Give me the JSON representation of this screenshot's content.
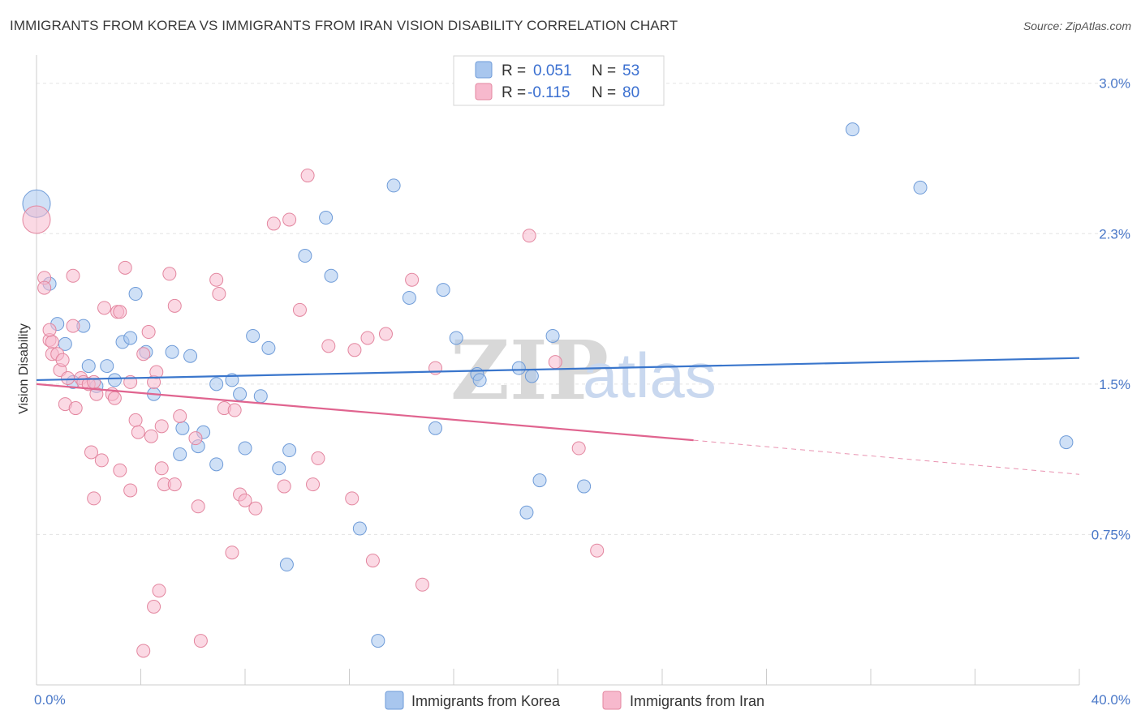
{
  "chart_data": {
    "type": "scatter",
    "title": "IMMIGRANTS FROM KOREA VS IMMIGRANTS FROM IRAN VISION DISABILITY CORRELATION CHART",
    "source": "Source: ZipAtlas.com",
    "ylabel": "Vision Disability",
    "xlabel": "",
    "xlim": [
      0,
      40
    ],
    "ylim": [
      0,
      3.1
    ],
    "x_tick_labels": [
      {
        "value": 0,
        "label": "0.0%"
      },
      {
        "value": 40,
        "label": "40.0%"
      }
    ],
    "y_tick_labels": [
      {
        "value": 0.75,
        "label": "0.75%"
      },
      {
        "value": 1.5,
        "label": "1.5%"
      },
      {
        "value": 2.25,
        "label": "2.3%"
      },
      {
        "value": 3.0,
        "label": "3.0%"
      }
    ],
    "legend": {
      "placement": "top-center",
      "entries": [
        {
          "r_label": "R =",
          "r_value": "0.051",
          "n_label": "N =",
          "n_value": "53"
        },
        {
          "r_label": "R =",
          "r_value": "-0.115",
          "n_label": "N =",
          "n_value": "80"
        }
      ]
    },
    "watermark": {
      "zip": "ZIP",
      "atlas": "atlas"
    },
    "series": [
      {
        "name": "Immigrants from Korea",
        "color": "#a8c6ee",
        "stroke": "#6e9bd8",
        "trend": {
          "x0": 0,
          "y0": 1.52,
          "x1": 40,
          "y1": 1.63,
          "color": "#3a76cc"
        },
        "points": [
          [
            0,
            2.4
          ],
          [
            0.5,
            2.0
          ],
          [
            0.8,
            1.8
          ],
          [
            1.8,
            1.79
          ],
          [
            1.1,
            1.7
          ],
          [
            2.0,
            1.59
          ],
          [
            2.7,
            1.59
          ],
          [
            1.4,
            1.51
          ],
          [
            2.3,
            1.49
          ],
          [
            3.0,
            1.52
          ],
          [
            3.8,
            1.95
          ],
          [
            3.3,
            1.71
          ],
          [
            3.6,
            1.73
          ],
          [
            4.2,
            1.66
          ],
          [
            5.2,
            1.66
          ],
          [
            5.9,
            1.64
          ],
          [
            4.5,
            1.45
          ],
          [
            5.6,
            1.28
          ],
          [
            6.2,
            1.19
          ],
          [
            5.5,
            1.15
          ],
          [
            6.4,
            1.26
          ],
          [
            6.9,
            1.1
          ],
          [
            6.9,
            1.5
          ],
          [
            7.5,
            1.52
          ],
          [
            7.8,
            1.45
          ],
          [
            8.0,
            1.18
          ],
          [
            8.3,
            1.74
          ],
          [
            8.6,
            1.44
          ],
          [
            8.9,
            1.68
          ],
          [
            9.3,
            1.08
          ],
          [
            9.7,
            1.17
          ],
          [
            9.6,
            0.6
          ],
          [
            10.3,
            2.14
          ],
          [
            11.1,
            2.33
          ],
          [
            11.3,
            2.04
          ],
          [
            12.4,
            0.78
          ],
          [
            13.1,
            0.22
          ],
          [
            13.7,
            2.49
          ],
          [
            14.3,
            1.93
          ],
          [
            15.6,
            1.97
          ],
          [
            15.3,
            1.28
          ],
          [
            16.1,
            1.73
          ],
          [
            16.9,
            1.55
          ],
          [
            17.0,
            1.52
          ],
          [
            18.5,
            1.58
          ],
          [
            19.0,
            1.54
          ],
          [
            18.8,
            0.86
          ],
          [
            19.3,
            1.02
          ],
          [
            19.8,
            1.74
          ],
          [
            21.0,
            0.99
          ],
          [
            31.3,
            2.77
          ],
          [
            33.9,
            2.48
          ],
          [
            39.5,
            1.21
          ]
        ]
      },
      {
        "name": "Immigrants from Iran",
        "color": "#f7b9cd",
        "stroke": "#e3869f",
        "trend": {
          "x0": 0,
          "y0": 1.5,
          "x1": 25.2,
          "y1": 1.22,
          "color": "#e0648f"
        },
        "trend_ext": {
          "x0": 25.2,
          "y0": 1.22,
          "x1": 40,
          "y1": 1.05
        },
        "points": [
          [
            0,
            2.32
          ],
          [
            0.3,
            2.03
          ],
          [
            0.3,
            1.98
          ],
          [
            0.5,
            1.72
          ],
          [
            0.6,
            1.71
          ],
          [
            0.5,
            1.77
          ],
          [
            0.6,
            1.65
          ],
          [
            0.8,
            1.65
          ],
          [
            0.9,
            1.57
          ],
          [
            1.0,
            1.62
          ],
          [
            1.2,
            1.53
          ],
          [
            1.1,
            1.4
          ],
          [
            1.4,
            1.79
          ],
          [
            1.5,
            1.38
          ],
          [
            1.4,
            2.04
          ],
          [
            1.7,
            1.53
          ],
          [
            1.8,
            1.51
          ],
          [
            2.0,
            1.5
          ],
          [
            2.2,
            1.51
          ],
          [
            2.3,
            1.45
          ],
          [
            2.1,
            1.16
          ],
          [
            2.2,
            0.93
          ],
          [
            2.5,
            1.12
          ],
          [
            2.6,
            1.88
          ],
          [
            2.9,
            1.45
          ],
          [
            3.0,
            1.43
          ],
          [
            3.1,
            1.86
          ],
          [
            3.2,
            1.86
          ],
          [
            3.2,
            1.07
          ],
          [
            3.4,
            2.08
          ],
          [
            3.6,
            0.97
          ],
          [
            3.6,
            1.51
          ],
          [
            3.8,
            1.32
          ],
          [
            3.9,
            1.26
          ],
          [
            4.1,
            1.65
          ],
          [
            4.3,
            1.76
          ],
          [
            4.4,
            1.24
          ],
          [
            4.5,
            1.51
          ],
          [
            4.6,
            1.56
          ],
          [
            4.8,
            1.29
          ],
          [
            4.8,
            1.08
          ],
          [
            4.9,
            1.0
          ],
          [
            5.3,
            1.0
          ],
          [
            5.1,
            2.05
          ],
          [
            5.3,
            1.89
          ],
          [
            5.5,
            1.34
          ],
          [
            6.1,
            1.23
          ],
          [
            6.2,
            0.89
          ],
          [
            6.9,
            2.02
          ],
          [
            7.0,
            1.95
          ],
          [
            7.2,
            1.38
          ],
          [
            7.5,
            0.66
          ],
          [
            7.6,
            1.37
          ],
          [
            7.8,
            0.95
          ],
          [
            8.0,
            0.92
          ],
          [
            8.4,
            0.88
          ],
          [
            9.1,
            2.3
          ],
          [
            9.5,
            0.99
          ],
          [
            9.7,
            2.32
          ],
          [
            10.1,
            1.87
          ],
          [
            10.4,
            2.54
          ],
          [
            10.6,
            1.0
          ],
          [
            10.8,
            1.13
          ],
          [
            11.2,
            1.69
          ],
          [
            12.1,
            0.93
          ],
          [
            12.2,
            1.67
          ],
          [
            12.7,
            1.73
          ],
          [
            12.9,
            0.62
          ],
          [
            13.4,
            1.75
          ],
          [
            14.4,
            2.02
          ],
          [
            14.8,
            0.5
          ],
          [
            15.3,
            1.58
          ],
          [
            18.9,
            2.24
          ],
          [
            19.9,
            1.61
          ],
          [
            20.8,
            1.18
          ],
          [
            21.5,
            0.67
          ],
          [
            4.5,
            0.39
          ],
          [
            4.7,
            0.47
          ],
          [
            4.1,
            0.17
          ],
          [
            6.3,
            0.22
          ]
        ]
      }
    ]
  }
}
